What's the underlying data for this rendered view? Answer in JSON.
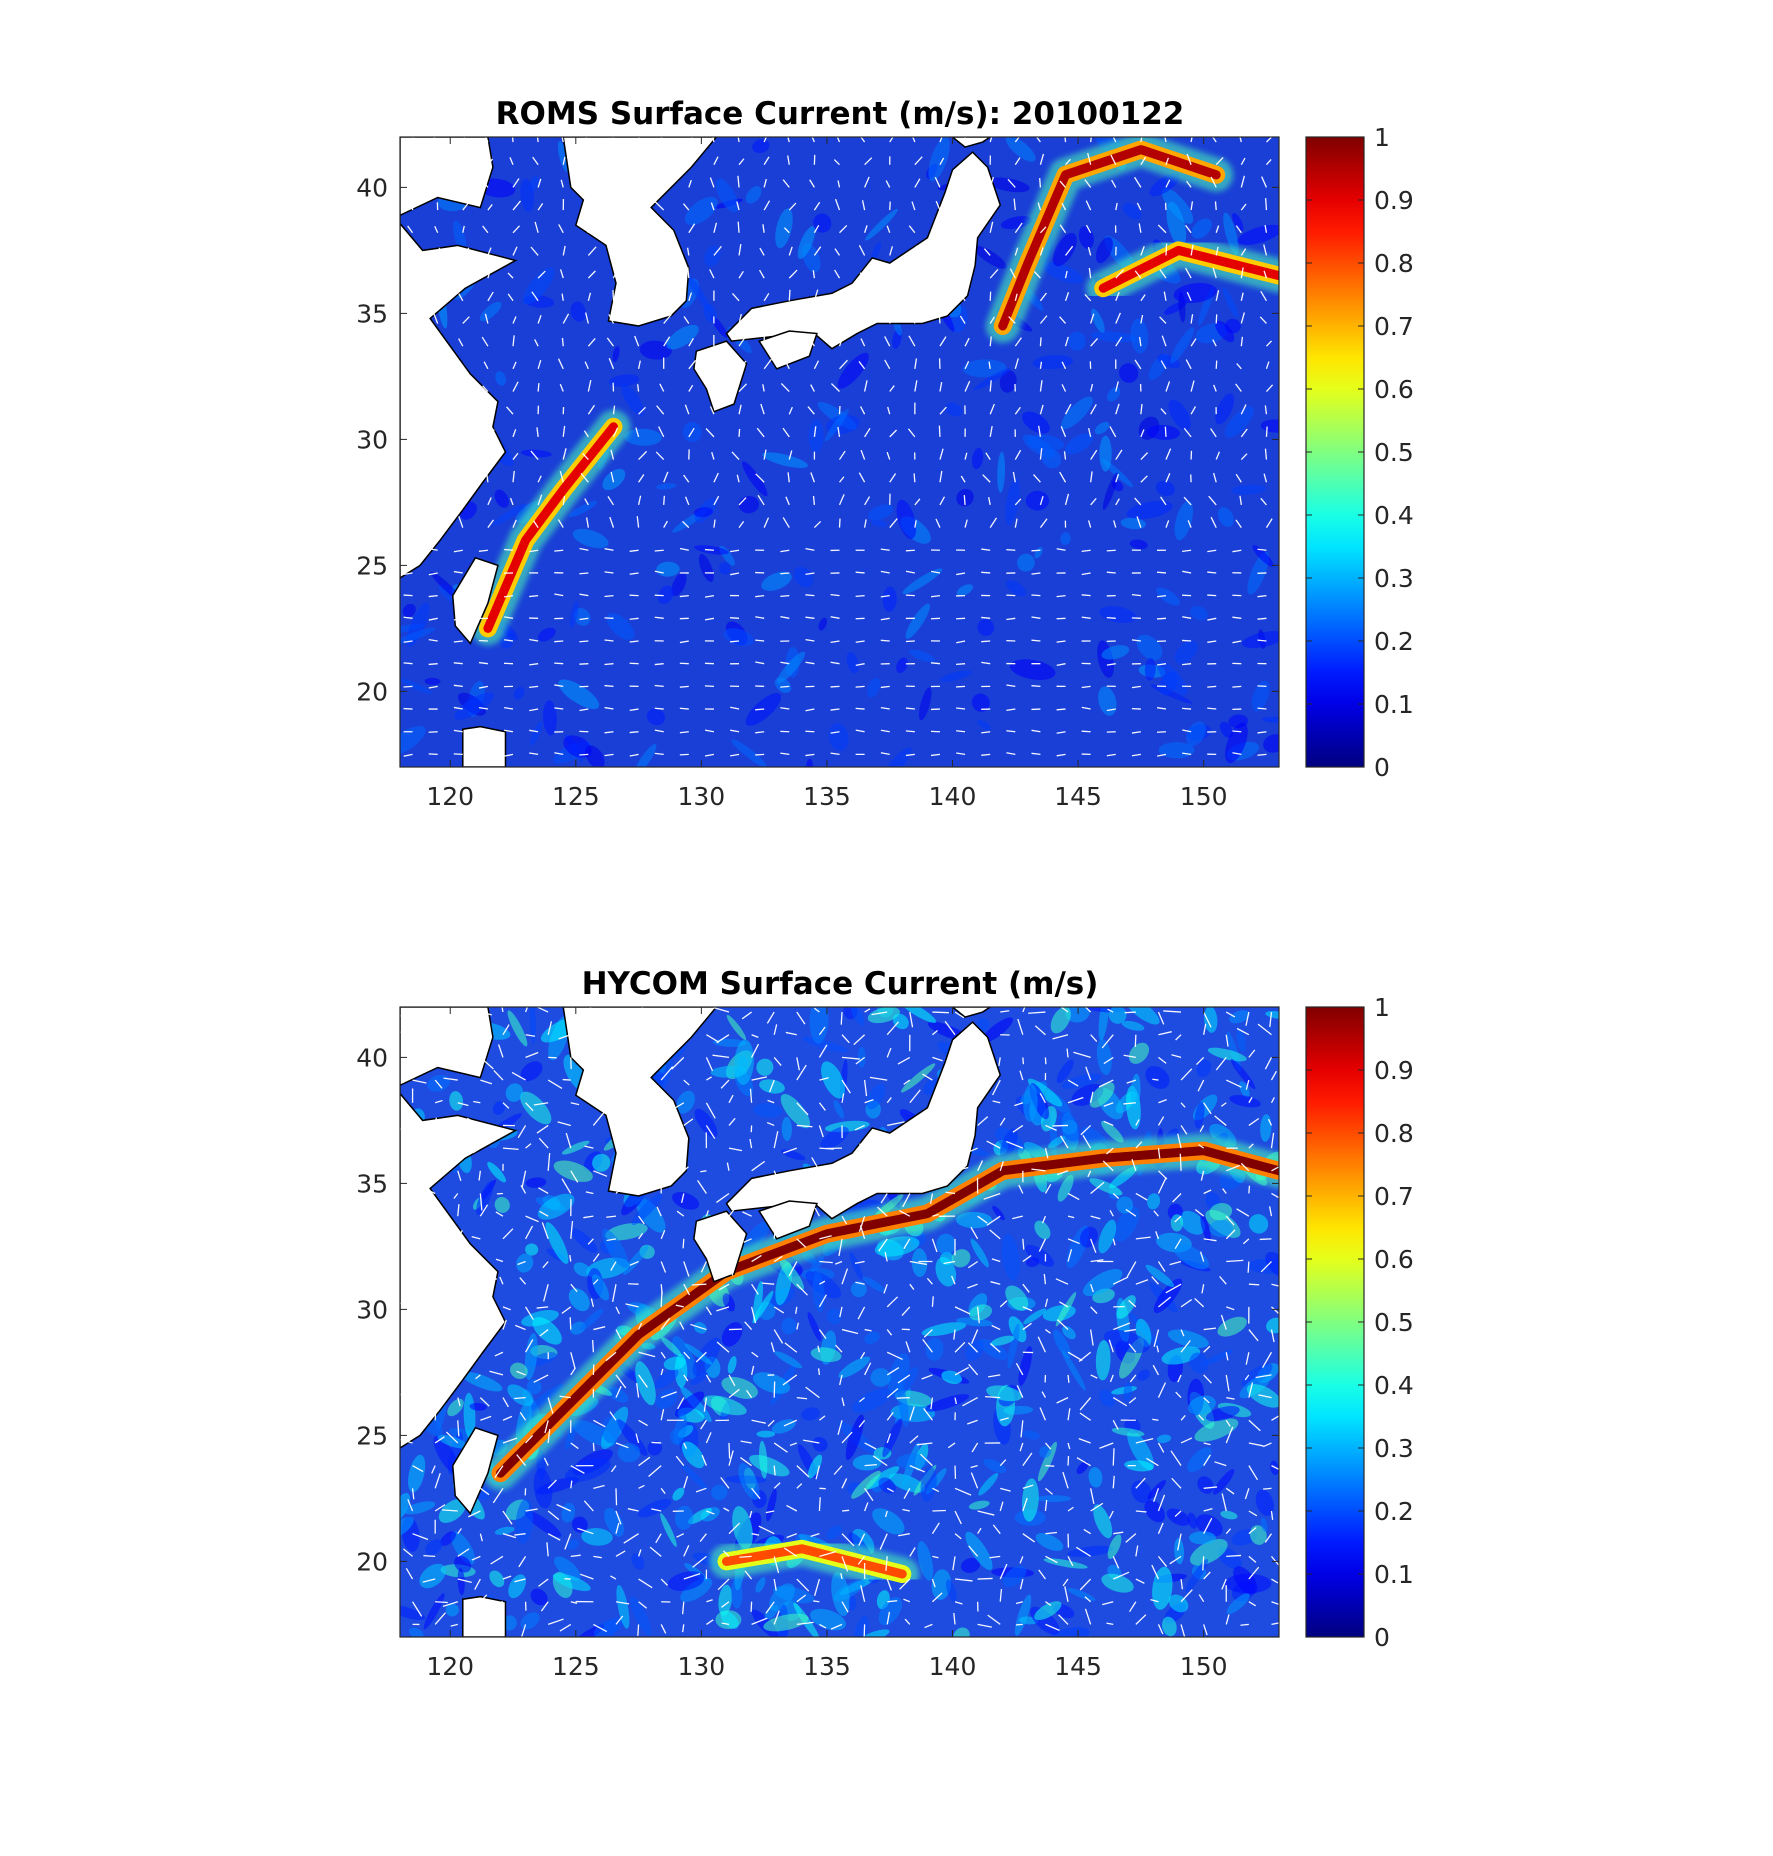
{
  "figure": {
    "panels": [
      {
        "id": "roms",
        "title": "ROMS Surface Current (m/s): 20100122",
        "x_ticks": [
          "120",
          "125",
          "130",
          "135",
          "140",
          "145",
          "150"
        ],
        "y_ticks": [
          "20",
          "25",
          "30",
          "35",
          "40"
        ],
        "colorbar_ticks": [
          "0",
          "0.1",
          "0.2",
          "0.3",
          "0.4",
          "0.5",
          "0.6",
          "0.7",
          "0.8",
          "0.9",
          "1"
        ]
      },
      {
        "id": "hycom",
        "title": "HYCOM Surface Current (m/s)",
        "x_ticks": [
          "120",
          "125",
          "130",
          "135",
          "140",
          "145",
          "150"
        ],
        "y_ticks": [
          "20",
          "25",
          "30",
          "35",
          "40"
        ],
        "colorbar_ticks": [
          "0",
          "0.1",
          "0.2",
          "0.3",
          "0.4",
          "0.5",
          "0.6",
          "0.7",
          "0.8",
          "0.9",
          "1"
        ]
      }
    ]
  },
  "chart_data": [
    {
      "type": "heatmap",
      "title": "ROMS Surface Current (m/s): 20100122",
      "xlim": [
        118,
        153
      ],
      "ylim": [
        17,
        42
      ],
      "x_ticks": [
        120,
        125,
        130,
        135,
        140,
        145,
        150
      ],
      "y_ticks": [
        20,
        25,
        30,
        35,
        40
      ],
      "colorbar": {
        "colormap": "jet",
        "range": [
          0,
          1
        ],
        "ticks": [
          0,
          0.1,
          0.2,
          0.3,
          0.4,
          0.5,
          0.6,
          0.7,
          0.8,
          0.9,
          1
        ]
      },
      "vector_color": "#ffffff",
      "land_color": "#ffffff",
      "strong_currents": [
        {
          "name_hint": "kuroshio-east-of-taiwan",
          "path": [
            [
              121.5,
              22.5
            ],
            [
              123,
              26
            ],
            [
              124.5,
              28
            ],
            [
              126.5,
              30.5
            ]
          ],
          "speed": 0.9
        },
        {
          "name_hint": "kuroshio-extension",
          "path": [
            [
              142,
              34.5
            ],
            [
              143,
              37
            ],
            [
              144.5,
              40.5
            ],
            [
              147.5,
              41.5
            ],
            [
              150.5,
              40.5
            ]
          ],
          "speed": 0.95
        },
        {
          "name_hint": "eastern-branch",
          "path": [
            [
              146,
              36
            ],
            [
              149,
              37.5
            ],
            [
              153,
              36.5
            ]
          ],
          "speed": 0.9
        }
      ]
    },
    {
      "type": "heatmap",
      "title": "HYCOM Surface Current (m/s)",
      "xlim": [
        118,
        153
      ],
      "ylim": [
        17,
        42
      ],
      "x_ticks": [
        120,
        125,
        130,
        135,
        140,
        145,
        150
      ],
      "y_ticks": [
        20,
        25,
        30,
        35,
        40
      ],
      "colorbar": {
        "colormap": "jet",
        "range": [
          0,
          1
        ],
        "ticks": [
          0,
          0.1,
          0.2,
          0.3,
          0.4,
          0.5,
          0.6,
          0.7,
          0.8,
          0.9,
          1
        ]
      },
      "vector_color": "#ffffff",
      "land_color": "#ffffff",
      "strong_currents": [
        {
          "name_hint": "kuroshio",
          "path": [
            [
              122,
              23.5
            ],
            [
              124.5,
              26
            ],
            [
              127.5,
              29
            ],
            [
              131,
              31.5
            ],
            [
              135,
              33
            ],
            [
              139,
              33.8
            ],
            [
              142,
              35.5
            ],
            [
              146,
              36
            ],
            [
              150,
              36.3
            ],
            [
              153,
              35.5
            ]
          ],
          "speed": 1.0
        },
        {
          "name_hint": "subtropical-eddies",
          "path": [
            [
              131,
              20
            ],
            [
              134,
              20.5
            ],
            [
              138,
              19.5
            ]
          ],
          "speed": 0.8
        }
      ]
    }
  ]
}
